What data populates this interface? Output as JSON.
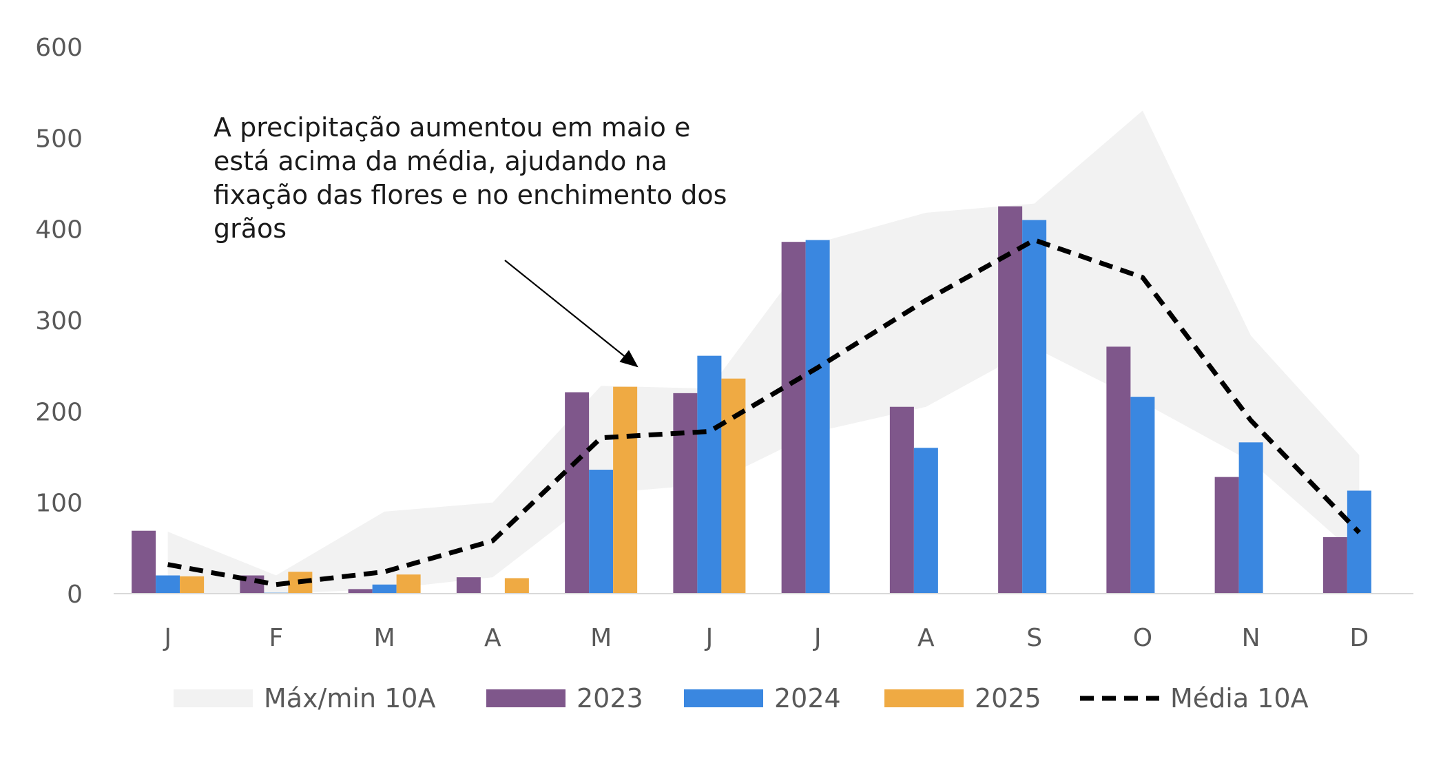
{
  "chart_data": {
    "type": "bar",
    "categories": [
      "J",
      "F",
      "M",
      "A",
      "M",
      "J",
      "J",
      "A",
      "S",
      "O",
      "N",
      "D"
    ],
    "ylim": [
      0,
      600
    ],
    "yticks": [
      0,
      100,
      200,
      300,
      400,
      500,
      600
    ],
    "grid": false,
    "legend_position": "bottom",
    "band": {
      "name": "Máx/min 10A",
      "color": "#f2f2f2",
      "max": [
        68,
        20,
        90,
        100,
        228,
        225,
        385,
        418,
        428,
        530,
        283,
        152
      ],
      "min": [
        0,
        0,
        5,
        18,
        110,
        120,
        178,
        205,
        270,
        210,
        145,
        40
      ]
    },
    "series": [
      {
        "name": "2023",
        "color": "#7f578b",
        "values": [
          69,
          20,
          5,
          18,
          221,
          220,
          386,
          205,
          425,
          271,
          128,
          62
        ]
      },
      {
        "name": "2024",
        "color": "#3a87e0",
        "values": [
          20,
          1,
          10,
          null,
          136,
          261,
          388,
          160,
          410,
          216,
          166,
          113
        ]
      },
      {
        "name": "2025",
        "color": "#efaa43",
        "values": [
          19,
          24,
          21,
          17,
          227,
          236,
          null,
          null,
          null,
          null,
          null,
          null
        ]
      }
    ],
    "line": {
      "name": "Média 10A",
      "color": "#000000",
      "values": [
        32,
        10,
        24,
        58,
        171,
        178,
        248,
        322,
        388,
        347,
        190,
        67
      ]
    },
    "annotation": {
      "lines": [
        "A precipitação aumentou em maio e",
        "está acima da média, ajudando na",
        "fixação das flores e no enchimento dos",
        "grãos"
      ]
    }
  }
}
